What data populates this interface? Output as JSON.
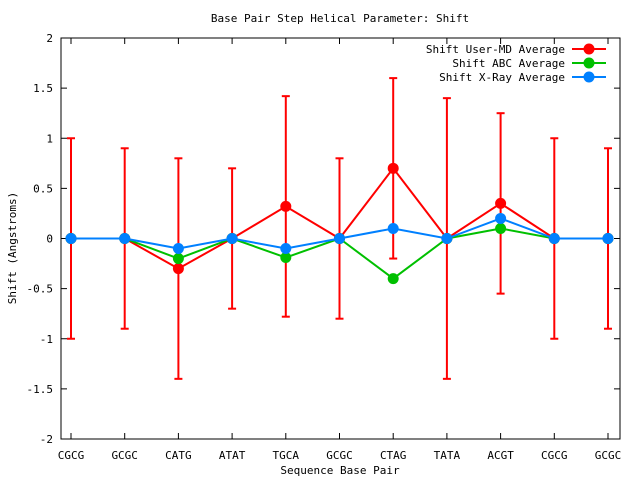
{
  "chart_data": {
    "type": "line",
    "title": "Base Pair Step Helical Parameter: Shift",
    "xlabel": "Sequence Base Pair",
    "ylabel": "Shift (Angstroms)",
    "categories": [
      "CGCG",
      "GCGC",
      "CATG",
      "ATAT",
      "TGCA",
      "GCGC",
      "CTAG",
      "TATA",
      "ACGT",
      "CGCG",
      "GCGC"
    ],
    "ylim": [
      -2,
      2
    ],
    "yticks": [
      -2,
      -1.5,
      -1,
      -0.5,
      0,
      0.5,
      1,
      1.5,
      2
    ],
    "ytick_labels": [
      "-2",
      "-1.5",
      "-1",
      "-0.5",
      "0",
      "0.5",
      "1",
      "1.5",
      "2"
    ],
    "grid": false,
    "legend_position": "top-right",
    "series": [
      {
        "name": "Shift User-MD Average",
        "color": "#ff0000",
        "values": [
          0,
          0,
          -0.3,
          0,
          0.32,
          0,
          0.7,
          0,
          0.35,
          0,
          0
        ],
        "error": [
          1.0,
          0.9,
          1.1,
          0.7,
          1.1,
          0.8,
          0.9,
          1.4,
          0.9,
          1.0,
          0.9
        ]
      },
      {
        "name": "Shift ABC Average",
        "color": "#00c000",
        "values": [
          0,
          0,
          -0.2,
          0,
          -0.19,
          0,
          -0.4,
          0,
          0.1,
          0,
          0
        ]
      },
      {
        "name": "Shift X-Ray Average",
        "color": "#0080ff",
        "values": [
          0,
          0,
          -0.1,
          0,
          -0.1,
          0,
          0.1,
          0,
          0.2,
          0,
          0
        ]
      }
    ]
  }
}
